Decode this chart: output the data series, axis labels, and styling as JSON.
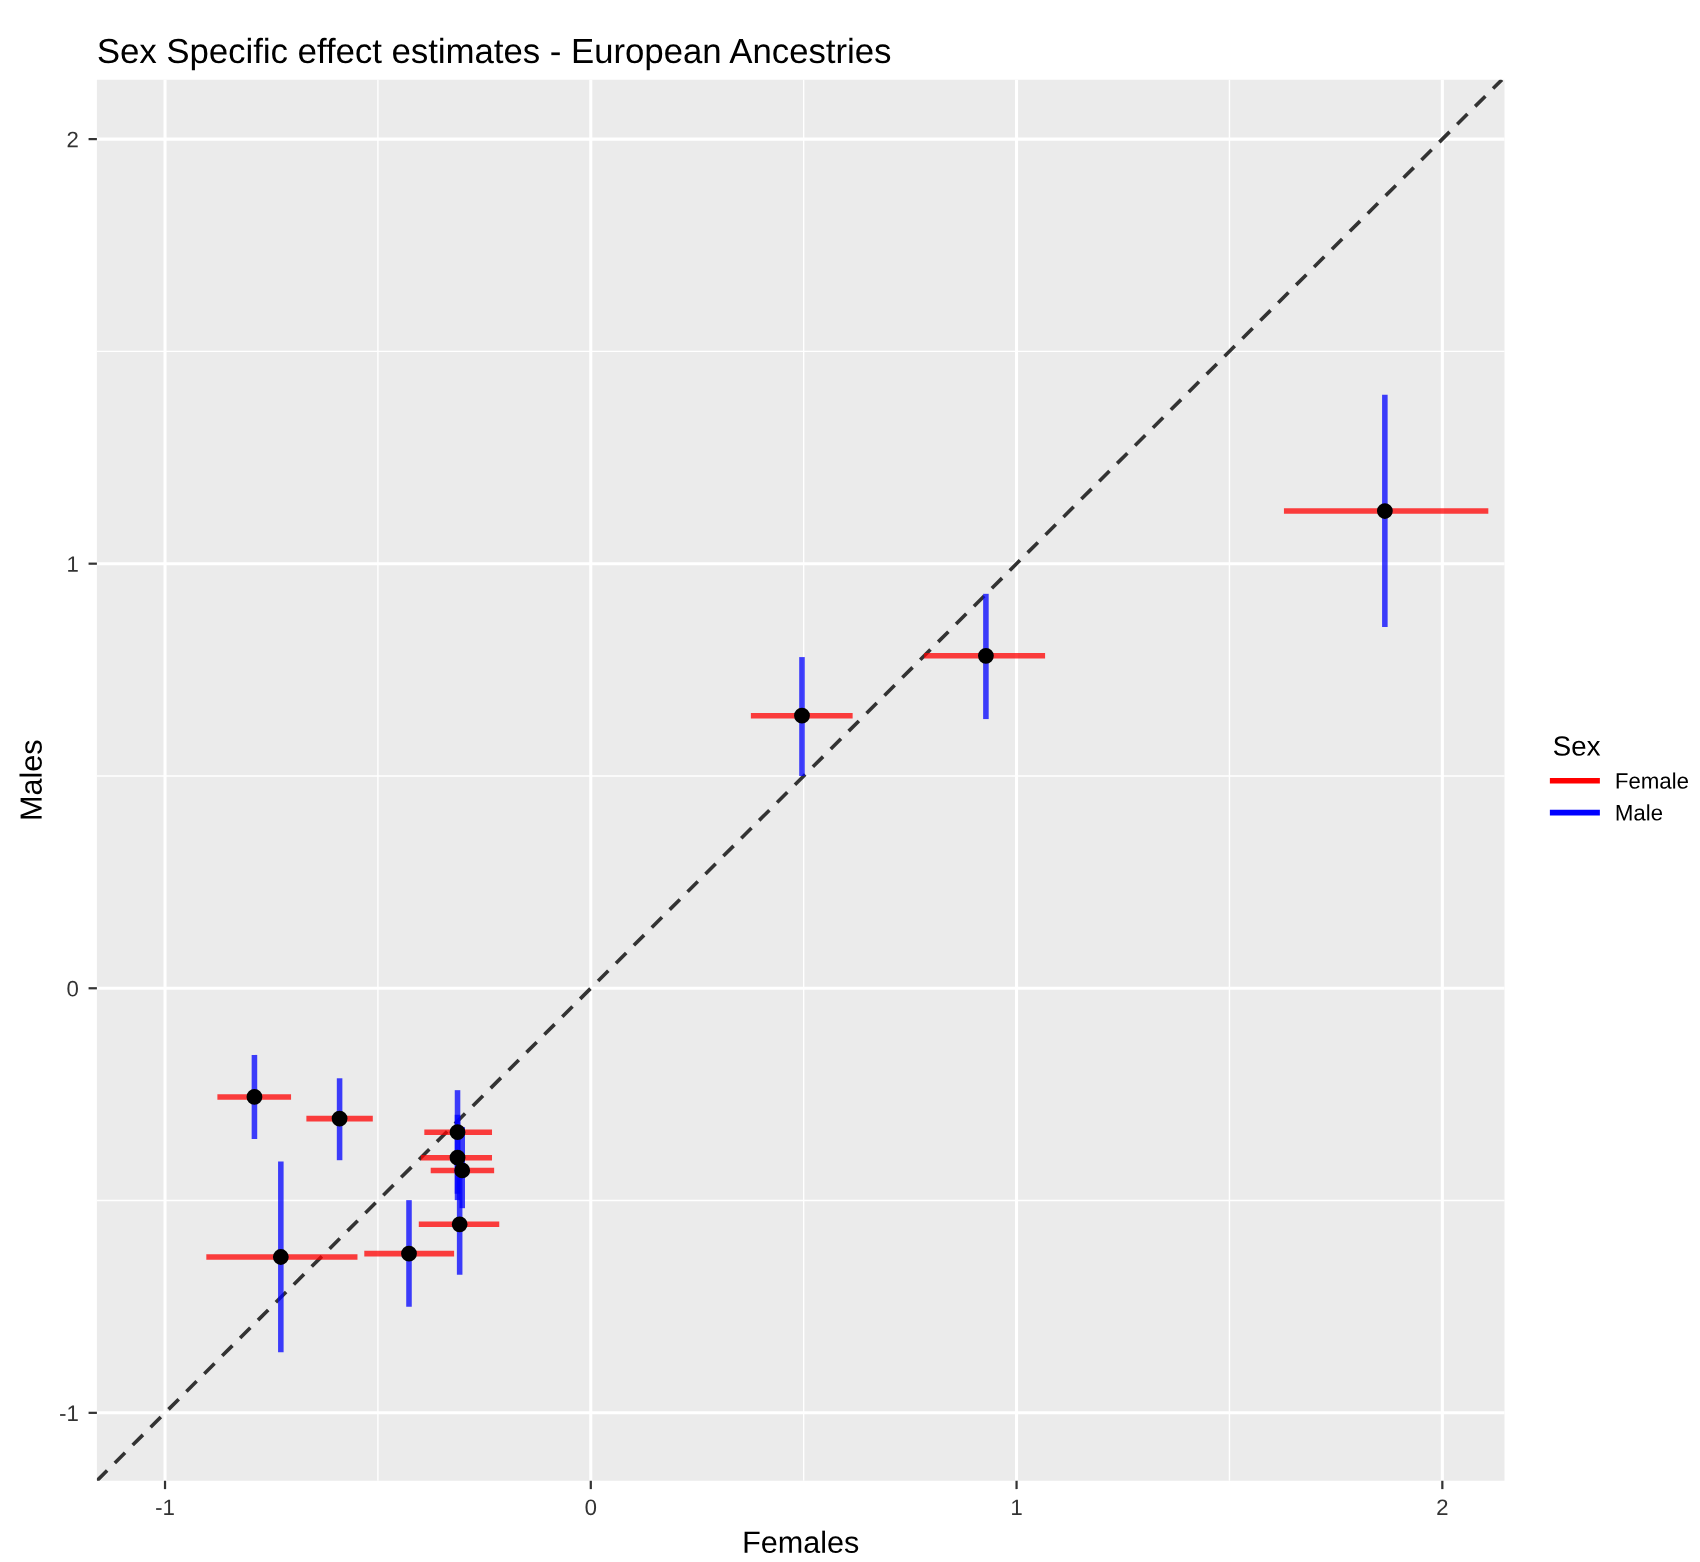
{
  "chart_data": {
    "type": "scatter",
    "title": "Sex Specific effect estimates - European Ancestries",
    "xlabel": "Females",
    "ylabel": "Males",
    "legend_title": "Sex",
    "legend": "right",
    "grid": true,
    "xlim": [
      -1.16,
      2.146
    ],
    "ylim": [
      -1.16,
      2.14
    ],
    "xticks": [
      -1,
      0,
      1,
      2
    ],
    "yticks": [
      -1,
      0,
      1,
      2
    ],
    "series": [
      {
        "marker": "circle",
        "color": "#000000",
        "x": [
          -0.79,
          -0.59,
          -0.728,
          -0.427,
          -0.313,
          -0.313,
          -0.302,
          -0.308,
          0.496,
          0.928,
          1.865
        ],
        "values": [
          -0.256,
          -0.307,
          -0.633,
          -0.625,
          -0.339,
          -0.399,
          -0.429,
          -0.556,
          0.642,
          0.783,
          1.124
        ],
        "xerrors": [
          [
            -0.877,
            -0.704
          ],
          [
            -0.668,
            -0.512
          ],
          [
            -0.903,
            -0.548
          ],
          [
            -0.532,
            -0.321
          ],
          [
            -0.391,
            -0.232
          ],
          [
            -0.399,
            -0.232
          ],
          [
            -0.376,
            -0.227
          ],
          [
            -0.404,
            -0.215
          ],
          [
            0.376,
            0.615
          ],
          [
            0.783,
            1.067
          ],
          [
            1.628,
            2.108
          ]
        ],
        "errors": [
          [
            -0.355,
            -0.157
          ],
          [
            -0.405,
            -0.212
          ],
          [
            -0.857,
            -0.408
          ],
          [
            -0.75,
            -0.499
          ],
          [
            -0.499,
            -0.24
          ],
          [
            -0.484,
            -0.298
          ],
          [
            -0.518,
            -0.327
          ],
          [
            -0.675,
            -0.421
          ],
          [
            0.5,
            0.78
          ],
          [
            0.634,
            0.929
          ],
          [
            0.851,
            1.398
          ]
        ]
      },
      {
        "name": "Female",
        "type": "line",
        "color": "#ff0000"
      },
      {
        "name": "Male",
        "type": "line",
        "color": "#0000ff"
      },
      {
        "type": "line",
        "marker": "none",
        "line_style": "dashed",
        "color": "#333333",
        "x": [
          -1.16,
          2.14
        ],
        "values": [
          -1.16,
          2.14
        ]
      }
    ]
  }
}
